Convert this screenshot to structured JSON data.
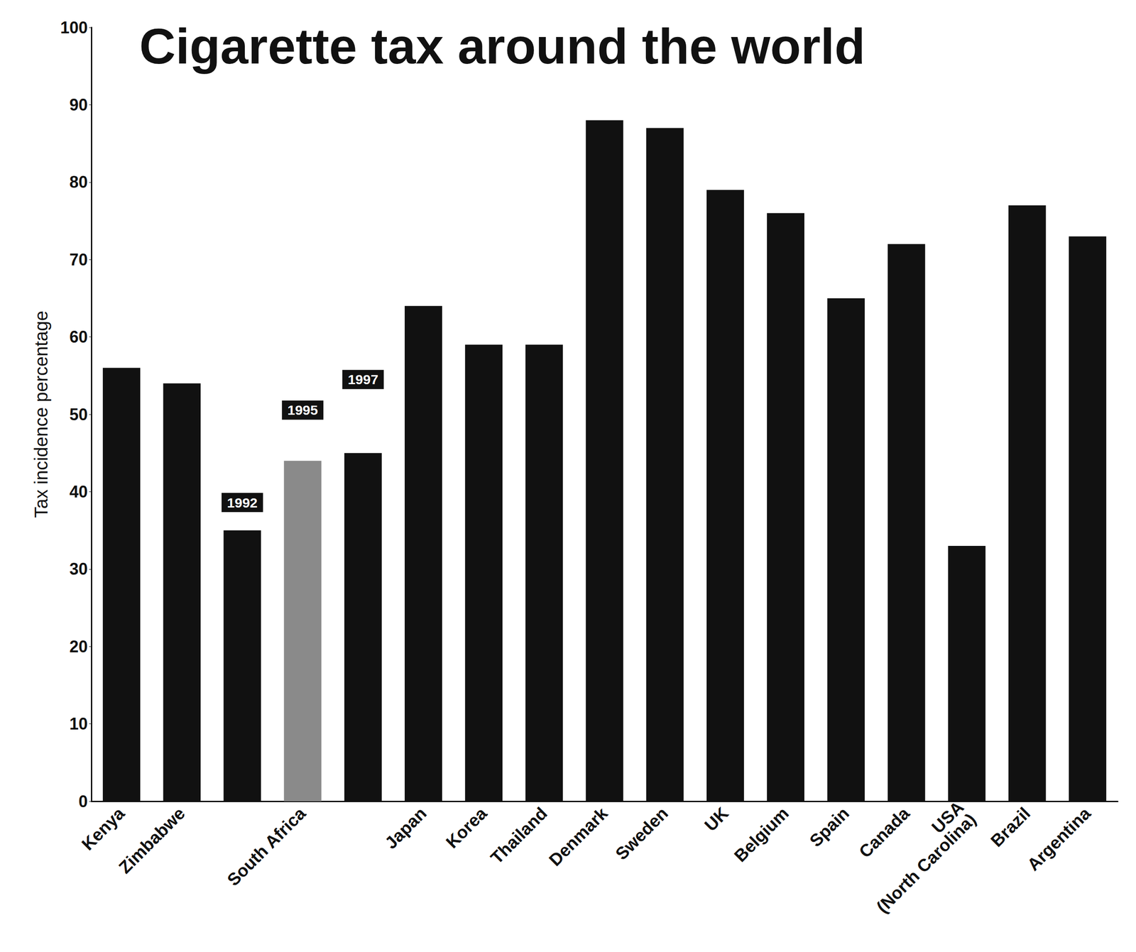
{
  "chart_data": {
    "type": "bar",
    "title": "Cigarette tax around the world",
    "y_label": "Tax incidence percentage",
    "categories": [
      "Kenya",
      "Zimbabwe",
      null,
      "South Africa",
      null,
      "Japan",
      "Korea",
      "Thailand",
      "Denmark",
      "Sweden",
      "UK",
      "Belgium",
      "Spain",
      "Canada",
      "USA\n(North Carolina)",
      "Brazil",
      "Argentina"
    ],
    "values": [
      56,
      54,
      35,
      44,
      45,
      64,
      59,
      59,
      88,
      87,
      79,
      76,
      65,
      72,
      33,
      77,
      73
    ],
    "colors": [
      "#111111",
      "#111111",
      "#111111",
      "#8a8a8a",
      "#111111",
      "#111111",
      "#111111",
      "#111111",
      "#111111",
      "#111111",
      "#111111",
      "#111111",
      "#111111",
      "#111111",
      "#111111",
      "#111111",
      "#111111"
    ],
    "annotations": [
      {
        "text": "1992",
        "category_index": 2
      },
      {
        "text": "1995",
        "category_index": 3
      },
      {
        "text": "1997",
        "category_index": 4
      }
    ],
    "ylim": [
      0,
      100
    ],
    "yticks": [
      0,
      10,
      20,
      30,
      40,
      50,
      60,
      70,
      80,
      90,
      100
    ],
    "grid": false
  }
}
